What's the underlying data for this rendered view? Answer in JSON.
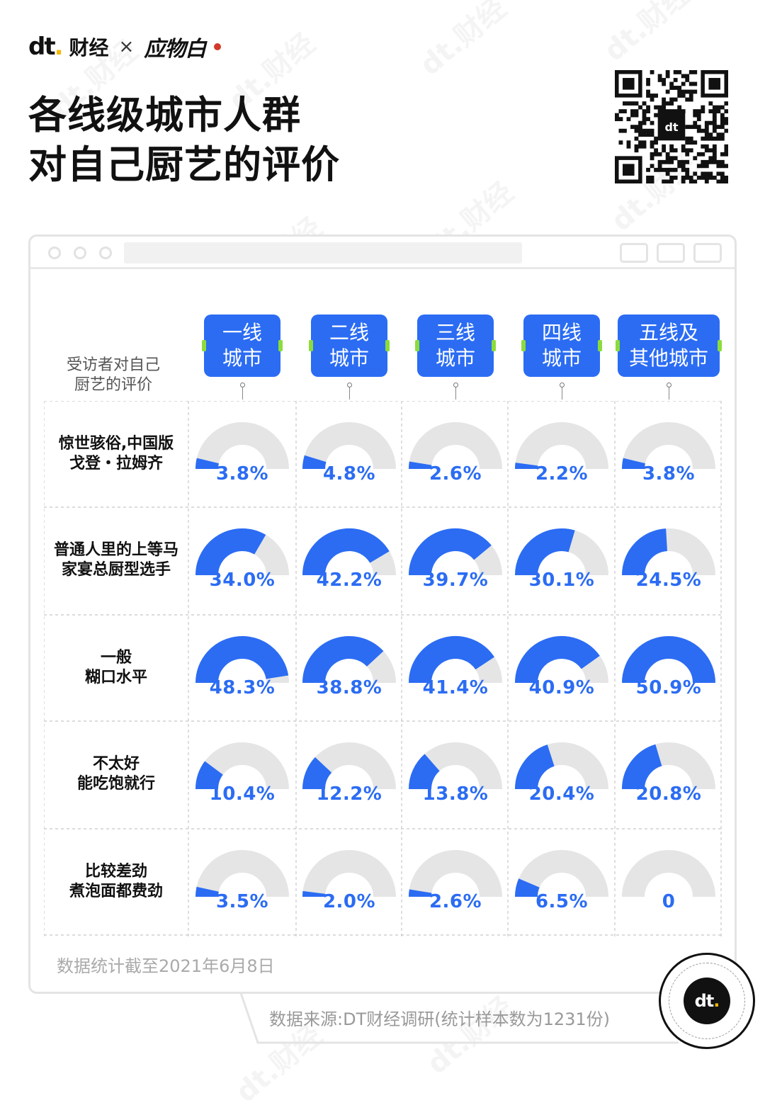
{
  "brand": {
    "logo": "dt",
    "name": "财经",
    "x": "×",
    "partner": "应物白"
  },
  "title": {
    "line1": "各线级城市人群",
    "line2": "对自己厨艺的评价"
  },
  "watermark": "dt.财经",
  "colors": {
    "accent": "#2b6cf3",
    "track": "#e5e5e5",
    "tab": "#8bdc3a"
  },
  "chart_data": {
    "type": "gauge",
    "row_axis_label": "受访者对自己厨艺的评价",
    "row_axis_label_lines": [
      "受访者对自己",
      "厨艺的评价"
    ],
    "columns": [
      {
        "line1": "一线",
        "line2": "城市"
      },
      {
        "line1": "二线",
        "line2": "城市"
      },
      {
        "line1": "三线",
        "line2": "城市"
      },
      {
        "line1": "四线",
        "line2": "城市"
      },
      {
        "line1": "五线及",
        "line2": "其他城市"
      }
    ],
    "rows": [
      {
        "line1": "惊世骇俗,中国版",
        "line2": "戈登・拉姆齐",
        "values": [
          3.8,
          4.8,
          2.6,
          2.2,
          3.8
        ],
        "labels": [
          "3.8%",
          "4.8%",
          "2.6%",
          "2.2%",
          "3.8%"
        ]
      },
      {
        "line1": "普通人里的上等马",
        "line2": "家宴总厨型选手",
        "values": [
          34.0,
          42.2,
          39.7,
          30.1,
          24.5
        ],
        "labels": [
          "34.0%",
          "42.2%",
          "39.7%",
          "30.1%",
          "24.5%"
        ]
      },
      {
        "line1": "一般",
        "line2": "糊口水平",
        "values": [
          48.3,
          38.8,
          41.4,
          40.9,
          50.9
        ],
        "labels": [
          "48.3%",
          "38.8%",
          "41.4%",
          "40.9%",
          "50.9%"
        ]
      },
      {
        "line1": "不太好",
        "line2": "能吃饱就行",
        "values": [
          10.4,
          12.2,
          13.8,
          20.4,
          20.8
        ],
        "labels": [
          "10.4%",
          "12.2%",
          "13.8%",
          "20.4%",
          "20.8%"
        ]
      },
      {
        "line1": "比较差劲",
        "line2": "煮泡面都费劲",
        "values": [
          3.5,
          2.0,
          2.6,
          6.5,
          0
        ],
        "labels": [
          "3.5%",
          "2.0%",
          "2.6%",
          "6.5%",
          "0"
        ]
      }
    ],
    "gauge_max": 50.9
  },
  "footer": {
    "note": "数据统计截至2021年6月8日",
    "source": "数据来源:DT财经调研(统计样本数为1231份)",
    "badge": "dt"
  }
}
